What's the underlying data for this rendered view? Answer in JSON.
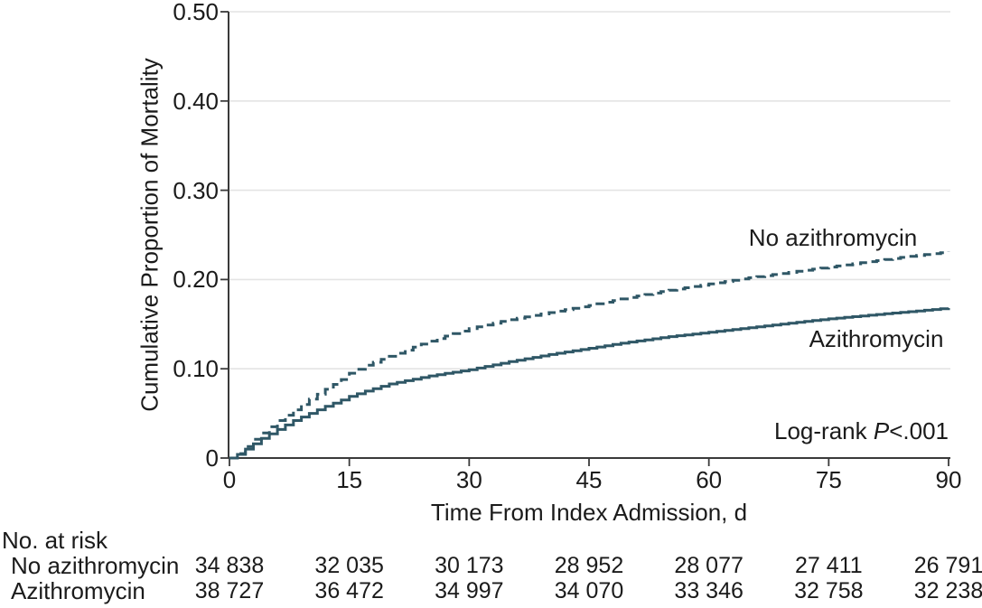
{
  "figure": {
    "background": "#ffffff",
    "text_color": "#1b1b1b"
  },
  "chart_data": {
    "type": "line",
    "subtype": "kaplan-meier-cumulative-incidence",
    "title": "",
    "xlabel": "Time From Index Admission, d",
    "ylabel": "Cumulative Proportion of Mortality",
    "xlim": [
      0,
      90
    ],
    "ylim": [
      0,
      0.5
    ],
    "xticks": [
      0,
      15,
      30,
      45,
      60,
      75,
      90
    ],
    "yticks": [
      0,
      0.1,
      0.2,
      0.3,
      0.4,
      0.5
    ],
    "ytick_labels": [
      "0",
      "0.10",
      "0.20",
      "0.30",
      "0.40",
      "0.50"
    ],
    "grid": "horizontal",
    "gridline_color": "#e4e4e4",
    "axis_color": "#3a3a3a",
    "legend_position": "inline-labels",
    "annotation": {
      "prefix": "Log-rank ",
      "p_symbol": "P",
      "value": "<.001"
    },
    "series": [
      {
        "name": "No azithromycin",
        "style": "dashed",
        "color": "#2f5766",
        "x": [
          0,
          1,
          2,
          3,
          4,
          5,
          6,
          7,
          8,
          9,
          10,
          12,
          14,
          15,
          17,
          20,
          25,
          30,
          35,
          40,
          45,
          50,
          55,
          60,
          65,
          70,
          75,
          80,
          85,
          90
        ],
        "y": [
          0,
          0.005,
          0.013,
          0.021,
          0.028,
          0.035,
          0.042,
          0.048,
          0.054,
          0.06,
          0.066,
          0.077,
          0.088,
          0.095,
          0.104,
          0.114,
          0.131,
          0.145,
          0.155,
          0.163,
          0.171,
          0.18,
          0.188,
          0.195,
          0.202,
          0.208,
          0.214,
          0.22,
          0.226,
          0.231
        ]
      },
      {
        "name": "Azithromycin",
        "style": "solid",
        "color": "#2f5766",
        "x": [
          0,
          1,
          2,
          3,
          4,
          5,
          6,
          7,
          8,
          9,
          10,
          12,
          14,
          15,
          17,
          20,
          25,
          30,
          35,
          40,
          45,
          50,
          55,
          60,
          65,
          70,
          75,
          80,
          85,
          90
        ],
        "y": [
          0,
          0.004,
          0.01,
          0.016,
          0.022,
          0.027,
          0.032,
          0.037,
          0.042,
          0.046,
          0.05,
          0.058,
          0.065,
          0.069,
          0.075,
          0.083,
          0.092,
          0.099,
          0.108,
          0.116,
          0.123,
          0.13,
          0.136,
          0.141,
          0.146,
          0.151,
          0.156,
          0.16,
          0.164,
          0.168
        ]
      }
    ],
    "risk_table": {
      "header": "No. at risk",
      "times": [
        0,
        15,
        30,
        45,
        60,
        75,
        90
      ],
      "rows": [
        {
          "label": "No azithromycin",
          "counts": [
            "34 838",
            "32 035",
            "30 173",
            "28 952",
            "28 077",
            "27 411",
            "26 791"
          ]
        },
        {
          "label": "Azithromycin",
          "counts": [
            "38 727",
            "36 472",
            "34 997",
            "34 070",
            "33 346",
            "32 758",
            "32 238"
          ]
        }
      ]
    }
  }
}
